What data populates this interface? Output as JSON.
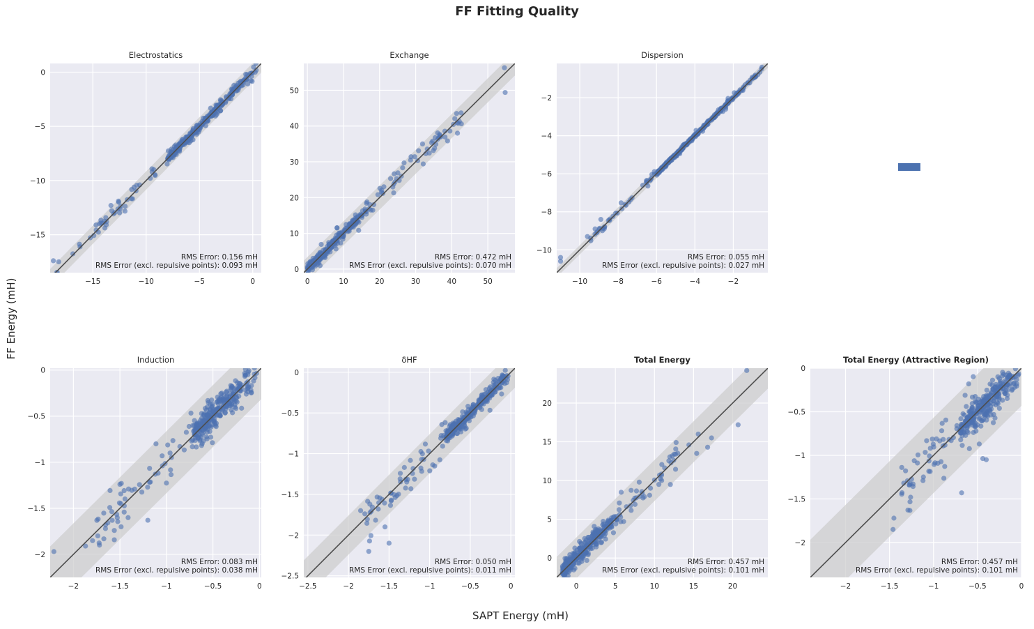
{
  "figure": {
    "title": "FF Fitting Quality",
    "xlabel": "SAPT Energy (mH)",
    "ylabel": "FF Energy (mH)"
  },
  "colors": {
    "background": "#eaeaf2",
    "grid": "#ffffff",
    "points": "#4c72b0",
    "line": "#4d4d4d",
    "band": "#cccccc"
  },
  "chart_data": [
    {
      "type": "scatter",
      "title": "Electrostatics",
      "title_bold": false,
      "xlim": [
        -19,
        0.8
      ],
      "ylim": [
        -18.5,
        0.8
      ],
      "xticks": [
        -15,
        -10,
        -5,
        0
      ],
      "yticks": [
        -15,
        -10,
        -5,
        0
      ],
      "rms_label": "RMS Error:  0.156 mH",
      "rms_attr_label": "RMS Error (excl. repulsive points):  0.093 mH",
      "point_range": [
        -18.5,
        0.4
      ],
      "dense_range": [
        -8,
        0.4
      ],
      "spread": 0.18,
      "outlier_spread": 0.35,
      "extra_points": [
        [
          -18.7,
          -17.4
        ],
        [
          -18.2,
          -17.5
        ],
        [
          -14.7,
          -14.1
        ],
        [
          -13.3,
          -12.3
        ],
        [
          -12.6,
          -11.9
        ]
      ]
    },
    {
      "type": "scatter",
      "title": "Exchange",
      "title_bold": false,
      "xlim": [
        -1,
        57.5
      ],
      "ylim": [
        -1,
        57.5
      ],
      "xticks": [
        0,
        10,
        20,
        30,
        40,
        50
      ],
      "yticks": [
        0,
        10,
        20,
        30,
        40,
        50
      ],
      "rms_label": "RMS Error:  0.472 mH",
      "rms_attr_label": "RMS Error (excl. repulsive points):  0.070 mH",
      "point_range": [
        0,
        44
      ],
      "dense_range": [
        0,
        18
      ],
      "spread": 0.6,
      "outlier_spread": 1.4,
      "extra_points": [
        [
          54.6,
          56.3
        ],
        [
          54.8,
          49.4
        ],
        [
          42.1,
          41.3
        ],
        [
          39.5,
          38.6
        ],
        [
          32.1,
          29.4
        ],
        [
          30.8,
          33.1
        ]
      ]
    },
    {
      "type": "scatter",
      "title": "Dispersion",
      "title_bold": false,
      "xlim": [
        -11.2,
        -0.2
      ],
      "ylim": [
        -11.2,
        -0.2
      ],
      "xticks": [
        -10,
        -8,
        -6,
        -4,
        -2
      ],
      "yticks": [
        -10,
        -8,
        -6,
        -4,
        -2
      ],
      "rms_label": "RMS Error:  0.055 mH",
      "rms_attr_label": "RMS Error (excl. repulsive points):  0.027 mH",
      "point_range": [
        -9.5,
        -0.4
      ],
      "dense_range": [
        -6,
        -0.4
      ],
      "spread": 0.04,
      "outlier_spread": 0.1,
      "extra_points": [
        [
          -11,
          -10.6
        ],
        [
          -11,
          -10.4
        ],
        [
          -9.6,
          -9.3
        ],
        [
          -9.2,
          -8.9
        ],
        [
          -8.9,
          -8.4
        ]
      ]
    },
    {
      "type": "legend-placeholder",
      "title": "",
      "title_bold": false,
      "xlim": [
        0,
        1
      ],
      "ylim": [
        0,
        1
      ],
      "xticks": [],
      "yticks": [],
      "rms_label": "",
      "rms_attr_label": "",
      "point_range": [
        0,
        0
      ],
      "dense_range": [
        0,
        0
      ],
      "spread": 0,
      "outlier_spread": 0,
      "extra_points": []
    },
    {
      "type": "scatter",
      "title": "Induction",
      "title_bold": false,
      "xlim": [
        -2.25,
        0.02
      ],
      "ylim": [
        -2.25,
        0.02
      ],
      "xticks": [
        -2.0,
        -1.5,
        -1.0,
        -0.5,
        0.0
      ],
      "yticks": [
        -2.0,
        -1.5,
        -1.0,
        -0.5,
        0.0
      ],
      "rms_label": "RMS Error:  0.083 mH",
      "rms_attr_label": "RMS Error (excl. repulsive points):  0.038 mH",
      "point_range": [
        -1.8,
        -0.01
      ],
      "dense_range": [
        -0.7,
        -0.01
      ],
      "spread": 0.07,
      "outlier_spread": 0.14,
      "extra_points": [
        [
          -2.21,
          -1.97
        ],
        [
          -1.87,
          -1.91
        ],
        [
          -1.5,
          -1.24
        ],
        [
          -1.2,
          -1.63
        ],
        [
          -1.72,
          -1.9
        ]
      ]
    },
    {
      "type": "scatter",
      "title": "δHF",
      "title_bold": false,
      "xlim": [
        -2.55,
        0.05
      ],
      "ylim": [
        -2.52,
        0.05
      ],
      "xticks": [
        -2.5,
        -2.0,
        -1.5,
        -1.0,
        -0.5,
        0.0
      ],
      "yticks": [
        -2.5,
        -2.0,
        -1.5,
        -1.0,
        -0.5,
        0.0
      ],
      "rms_label": "RMS Error:  0.050 mH",
      "rms_attr_label": "RMS Error (excl. repulsive points):  0.011 mH",
      "point_range": [
        -1.8,
        -0.01
      ],
      "dense_range": [
        -0.8,
        -0.01
      ],
      "spread": 0.04,
      "outlier_spread": 0.1,
      "extra_points": [
        [
          -1.5,
          -2.1
        ],
        [
          -1.75,
          -2.2
        ],
        [
          -1.85,
          -1.7
        ],
        [
          -1.55,
          -1.9
        ]
      ]
    },
    {
      "type": "scatter",
      "title": "Total Energy",
      "title_bold": true,
      "xlim": [
        -2.5,
        24.5
      ],
      "ylim": [
        -2.5,
        24.5
      ],
      "xticks": [
        0,
        5,
        10,
        15,
        20
      ],
      "yticks": [
        0,
        5,
        10,
        15,
        20
      ],
      "rms_label": "RMS Error:  0.457 mH",
      "rms_attr_label": "RMS Error (excl. repulsive points):  0.101 mH",
      "point_range": [
        -1.8,
        13
      ],
      "dense_range": [
        -1.8,
        6
      ],
      "spread": 0.55,
      "outlier_spread": 1.1,
      "extra_points": [
        [
          21.8,
          24.2
        ],
        [
          20.7,
          17.2
        ],
        [
          17.3,
          15.5
        ],
        [
          16.8,
          14.3
        ],
        [
          15.4,
          13.5
        ],
        [
          15.6,
          16.0
        ],
        [
          14.4,
          14.6
        ]
      ]
    },
    {
      "type": "scatter",
      "title": "Total Energy (Attractive Region)",
      "title_bold": true,
      "xlim": [
        -2.4,
        0.0
      ],
      "ylim": [
        -2.4,
        0.0
      ],
      "xticks": [
        -2.0,
        -1.5,
        -1.0,
        -0.5,
        0.0
      ],
      "yticks": [
        -2.0,
        -1.5,
        -1.0,
        -0.5,
        0.0
      ],
      "rms_label": "RMS Error:  0.457 mH",
      "rms_attr_label": "RMS Error (excl. repulsive points):  0.101 mH",
      "point_range": [
        -1.4,
        -0.01
      ],
      "dense_range": [
        -0.7,
        -0.01
      ],
      "spread": 0.08,
      "outlier_spread": 0.18,
      "extra_points": [
        [
          -1.45,
          -1.72
        ],
        [
          -1.46,
          -1.85
        ],
        [
          -1.26,
          -1.48
        ],
        [
          -0.68,
          -1.43
        ],
        [
          -0.48,
          -0.87
        ],
        [
          -0.4,
          -1.05
        ],
        [
          -0.2,
          -0.2
        ],
        [
          -0.6,
          -0.18
        ]
      ]
    }
  ]
}
